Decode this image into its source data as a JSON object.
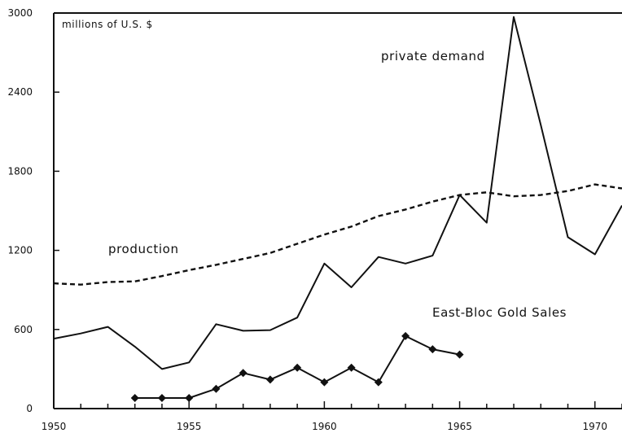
{
  "chart_data": {
    "type": "line",
    "unit_label": "millions of U.S. $",
    "xlim": [
      1950,
      1971
    ],
    "ylim": [
      0,
      3000
    ],
    "x_ticks": [
      1950,
      1955,
      1960,
      1965,
      1970
    ],
    "y_ticks": [
      0,
      600,
      1200,
      1800,
      2400,
      3000
    ],
    "grid": false,
    "series": [
      {
        "name": "production",
        "style": "dashed",
        "color": "#111111",
        "points": [
          [
            1950,
            950
          ],
          [
            1951,
            940
          ],
          [
            1952,
            960
          ],
          [
            1953,
            965
          ],
          [
            1954,
            1005
          ],
          [
            1955,
            1050
          ],
          [
            1956,
            1090
          ],
          [
            1957,
            1135
          ],
          [
            1958,
            1180
          ],
          [
            1959,
            1250
          ],
          [
            1960,
            1320
          ],
          [
            1961,
            1380
          ],
          [
            1962,
            1460
          ],
          [
            1963,
            1510
          ],
          [
            1964,
            1570
          ],
          [
            1965,
            1620
          ],
          [
            1966,
            1640
          ],
          [
            1967,
            1610
          ],
          [
            1968,
            1620
          ],
          [
            1969,
            1650
          ],
          [
            1970,
            1700
          ],
          [
            1971,
            1670
          ]
        ]
      },
      {
        "name": "private demand",
        "style": "solid",
        "color": "#111111",
        "points": [
          [
            1950,
            530
          ],
          [
            1951,
            570
          ],
          [
            1952,
            620
          ],
          [
            1953,
            470
          ],
          [
            1954,
            300
          ],
          [
            1955,
            350
          ],
          [
            1956,
            640
          ],
          [
            1957,
            590
          ],
          [
            1958,
            595
          ],
          [
            1959,
            690
          ],
          [
            1960,
            1100
          ],
          [
            1961,
            920
          ],
          [
            1962,
            1150
          ],
          [
            1963,
            1100
          ],
          [
            1964,
            1160
          ],
          [
            1965,
            1620
          ],
          [
            1966,
            1410
          ],
          [
            1967,
            2970
          ],
          [
            1968,
            2150
          ],
          [
            1969,
            1300
          ],
          [
            1970,
            1170
          ],
          [
            1971,
            1540
          ]
        ]
      },
      {
        "name": "East-Bloc Gold Sales",
        "style": "solid-diamond",
        "color": "#111111",
        "points": [
          [
            1953,
            80
          ],
          [
            1954,
            80
          ],
          [
            1955,
            80
          ],
          [
            1956,
            150
          ],
          [
            1957,
            270
          ],
          [
            1958,
            220
          ],
          [
            1959,
            310
          ],
          [
            1960,
            200
          ],
          [
            1961,
            310
          ],
          [
            1962,
            200
          ],
          [
            1963,
            550
          ],
          [
            1964,
            450
          ],
          [
            1965,
            410
          ]
        ]
      }
    ]
  }
}
